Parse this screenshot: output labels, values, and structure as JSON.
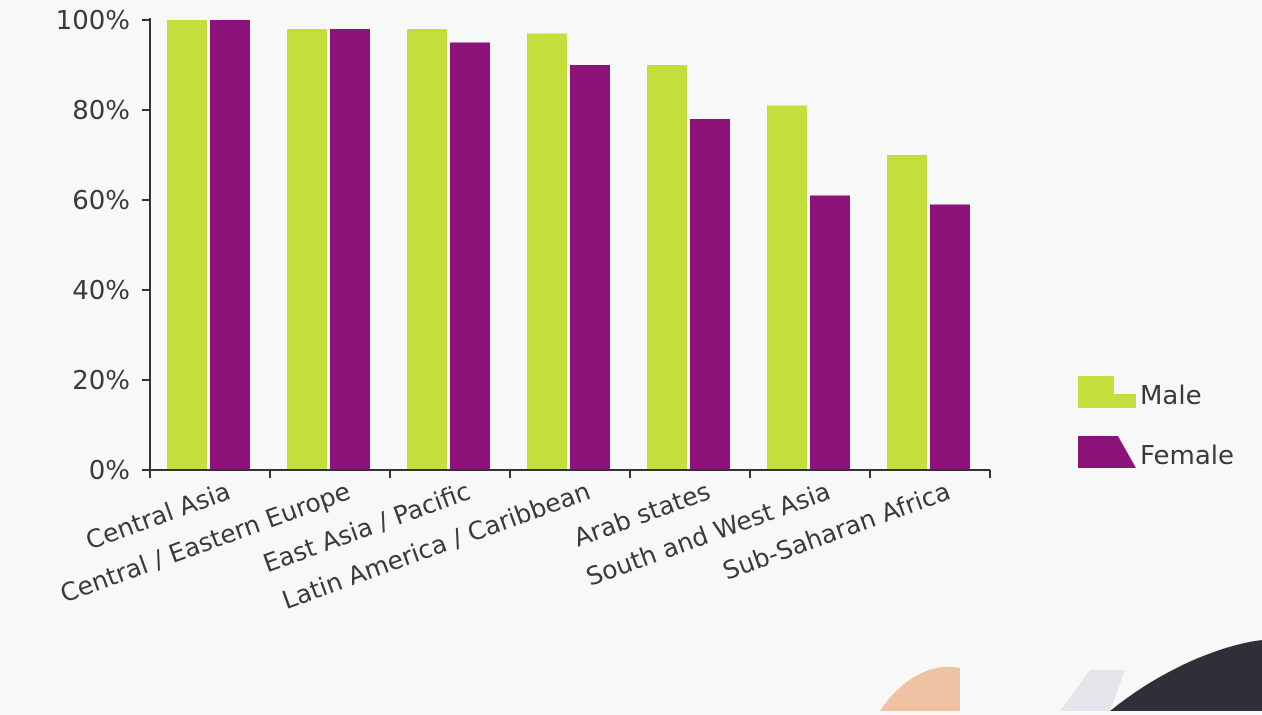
{
  "chart_data": {
    "type": "bar",
    "title": "",
    "xlabel": "",
    "ylabel": "",
    "categories": [
      "Central Asia",
      "Central / Eastern Europe",
      "East Asia / Pacific",
      "Latin America / Caribbean",
      "Arab states",
      "South and West Asia",
      "Sub-Saharan Africa"
    ],
    "series": [
      {
        "name": "Male",
        "color": "#c4de3c",
        "values": [
          100,
          98,
          98,
          97,
          90,
          81,
          70
        ]
      },
      {
        "name": "Female",
        "color": "#8c137a",
        "values": [
          100,
          98,
          95,
          90,
          78,
          61,
          59
        ]
      }
    ],
    "ylim": [
      0,
      100
    ],
    "yticks": [
      "0%",
      "20%",
      "40%",
      "60%",
      "80%",
      "100%"
    ],
    "ytick_values": [
      0,
      20,
      40,
      60,
      80,
      100
    ],
    "grid": false,
    "legend_position": "right"
  }
}
